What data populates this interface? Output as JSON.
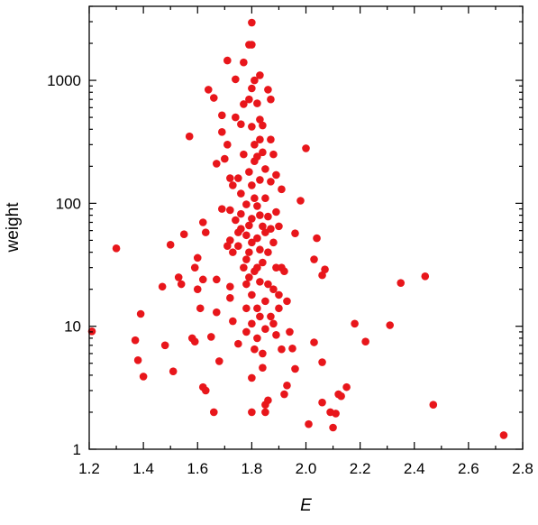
{
  "chart_data": {
    "type": "scatter",
    "title": "",
    "xlabel": "E",
    "ylabel": "weight",
    "xlim": [
      1.2,
      2.8
    ],
    "ylim": [
      1,
      4000
    ],
    "y_scale": "log",
    "grid": false,
    "legend": "none",
    "marker_color": "#e8161b",
    "x_ticks": [
      {
        "value": 1.2,
        "label": "1.2"
      },
      {
        "value": 1.4,
        "label": "1.4"
      },
      {
        "value": 1.6,
        "label": "1.6"
      },
      {
        "value": 1.8,
        "label": "1.8"
      },
      {
        "value": 2.0,
        "label": "2.0"
      },
      {
        "value": 2.2,
        "label": "2.2"
      },
      {
        "value": 2.4,
        "label": "2.4"
      },
      {
        "value": 2.6,
        "label": "2.6"
      },
      {
        "value": 2.8,
        "label": "2.8"
      }
    ],
    "y_ticks": [
      {
        "value": 1,
        "label": "1"
      },
      {
        "value": 10,
        "label": "10"
      },
      {
        "value": 100,
        "label": "100"
      },
      {
        "value": 1000,
        "label": "1000"
      }
    ],
    "series": [
      {
        "points": [
          [
            1.21,
            9.1
          ],
          [
            1.3,
            43
          ],
          [
            1.37,
            7.7
          ],
          [
            1.38,
            5.3
          ],
          [
            1.39,
            12.6
          ],
          [
            1.4,
            3.9
          ],
          [
            1.47,
            21
          ],
          [
            1.48,
            7.0
          ],
          [
            1.5,
            46
          ],
          [
            1.51,
            4.3
          ],
          [
            1.53,
            25
          ],
          [
            1.54,
            22
          ],
          [
            1.55,
            56
          ],
          [
            1.57,
            350
          ],
          [
            1.58,
            8
          ],
          [
            1.59,
            7.5
          ],
          [
            1.59,
            30
          ],
          [
            1.6,
            36
          ],
          [
            1.6,
            20
          ],
          [
            1.61,
            14
          ],
          [
            1.62,
            70
          ],
          [
            1.62,
            24
          ],
          [
            1.62,
            3.2
          ],
          [
            1.63,
            3.0
          ],
          [
            1.63,
            58
          ],
          [
            1.64,
            840
          ],
          [
            1.65,
            8.2
          ],
          [
            1.66,
            720
          ],
          [
            1.66,
            2.0
          ],
          [
            1.67,
            13
          ],
          [
            1.67,
            24
          ],
          [
            1.67,
            210
          ],
          [
            1.68,
            5.2
          ],
          [
            1.69,
            90
          ],
          [
            1.69,
            520
          ],
          [
            1.69,
            380
          ],
          [
            1.7,
            230
          ],
          [
            1.71,
            1450
          ],
          [
            1.71,
            45
          ],
          [
            1.71,
            300
          ],
          [
            1.72,
            50
          ],
          [
            1.72,
            160
          ],
          [
            1.72,
            88
          ],
          [
            1.72,
            21
          ],
          [
            1.72,
            17
          ],
          [
            1.73,
            140
          ],
          [
            1.73,
            11
          ],
          [
            1.73,
            40
          ],
          [
            1.74,
            1020
          ],
          [
            1.74,
            500
          ],
          [
            1.74,
            73
          ],
          [
            1.75,
            58
          ],
          [
            1.75,
            45
          ],
          [
            1.75,
            7.2
          ],
          [
            1.75,
            160
          ],
          [
            1.76,
            440
          ],
          [
            1.76,
            120
          ],
          [
            1.76,
            82
          ],
          [
            1.76,
            62
          ],
          [
            1.77,
            30
          ],
          [
            1.77,
            1400
          ],
          [
            1.77,
            640
          ],
          [
            1.77,
            250
          ],
          [
            1.78,
            98
          ],
          [
            1.78,
            55
          ],
          [
            1.78,
            35
          ],
          [
            1.78,
            22
          ],
          [
            1.78,
            14
          ],
          [
            1.78,
            9
          ],
          [
            1.79,
            1950
          ],
          [
            1.79,
            700
          ],
          [
            1.79,
            180
          ],
          [
            1.79,
            66
          ],
          [
            1.79,
            40
          ],
          [
            1.79,
            25
          ],
          [
            1.8,
            2.0
          ],
          [
            1.8,
            3.8
          ],
          [
            1.8,
            2950
          ],
          [
            1.8,
            1950
          ],
          [
            1.8,
            860
          ],
          [
            1.8,
            420
          ],
          [
            1.8,
            140
          ],
          [
            1.8,
            75
          ],
          [
            1.8,
            48
          ],
          [
            1.8,
            18
          ],
          [
            1.8,
            10.5
          ],
          [
            1.81,
            1000
          ],
          [
            1.81,
            300
          ],
          [
            1.81,
            220
          ],
          [
            1.81,
            110
          ],
          [
            1.81,
            6.5
          ],
          [
            1.81,
            28
          ],
          [
            1.82,
            650
          ],
          [
            1.82,
            240
          ],
          [
            1.82,
            95
          ],
          [
            1.82,
            52
          ],
          [
            1.82,
            30
          ],
          [
            1.82,
            14
          ],
          [
            1.82,
            8
          ],
          [
            1.83,
            1100
          ],
          [
            1.83,
            480
          ],
          [
            1.83,
            330
          ],
          [
            1.83,
            155
          ],
          [
            1.83,
            80
          ],
          [
            1.83,
            42
          ],
          [
            1.83,
            23
          ],
          [
            1.83,
            12
          ],
          [
            1.84,
            430
          ],
          [
            1.84,
            260
          ],
          [
            1.84,
            65
          ],
          [
            1.84,
            33
          ],
          [
            1.84,
            6
          ],
          [
            1.84,
            4.6
          ],
          [
            1.85,
            2.0
          ],
          [
            1.85,
            2.3
          ],
          [
            1.85,
            190
          ],
          [
            1.85,
            110
          ],
          [
            1.85,
            58
          ],
          [
            1.85,
            16
          ],
          [
            1.85,
            9.5
          ],
          [
            1.86,
            840
          ],
          [
            1.86,
            2.5
          ],
          [
            1.86,
            78
          ],
          [
            1.86,
            40
          ],
          [
            1.86,
            22
          ],
          [
            1.87,
            700
          ],
          [
            1.87,
            330
          ],
          [
            1.87,
            150
          ],
          [
            1.87,
            62
          ],
          [
            1.87,
            12
          ],
          [
            1.88,
            250
          ],
          [
            1.88,
            48
          ],
          [
            1.88,
            20
          ],
          [
            1.88,
            10.5
          ],
          [
            1.89,
            170
          ],
          [
            1.89,
            85
          ],
          [
            1.89,
            30
          ],
          [
            1.89,
            8.5
          ],
          [
            1.9,
            65
          ],
          [
            1.9,
            18
          ],
          [
            1.9,
            14
          ],
          [
            1.91,
            130
          ],
          [
            1.91,
            30
          ],
          [
            1.91,
            6.5
          ],
          [
            1.92,
            28
          ],
          [
            1.92,
            2.8
          ],
          [
            1.93,
            16
          ],
          [
            1.93,
            3.3
          ],
          [
            1.94,
            9
          ],
          [
            1.95,
            6.6
          ],
          [
            1.96,
            57
          ],
          [
            1.96,
            4.5
          ],
          [
            1.98,
            105
          ],
          [
            2.0,
            280
          ],
          [
            2.01,
            1.6
          ],
          [
            2.03,
            7.4
          ],
          [
            2.03,
            35
          ],
          [
            2.04,
            52
          ],
          [
            2.06,
            5.1
          ],
          [
            2.06,
            2.4
          ],
          [
            2.06,
            26
          ],
          [
            2.07,
            29
          ],
          [
            2.09,
            2.0
          ],
          [
            2.1,
            1.5
          ],
          [
            2.11,
            1.95
          ],
          [
            2.12,
            2.8
          ],
          [
            2.13,
            2.7
          ],
          [
            2.15,
            3.2
          ],
          [
            2.18,
            10.5
          ],
          [
            2.22,
            7.5
          ],
          [
            2.31,
            10.2
          ],
          [
            2.35,
            22.5
          ],
          [
            2.44,
            25.5
          ],
          [
            2.47,
            2.3
          ],
          [
            2.73,
            1.3
          ]
        ]
      }
    ]
  }
}
